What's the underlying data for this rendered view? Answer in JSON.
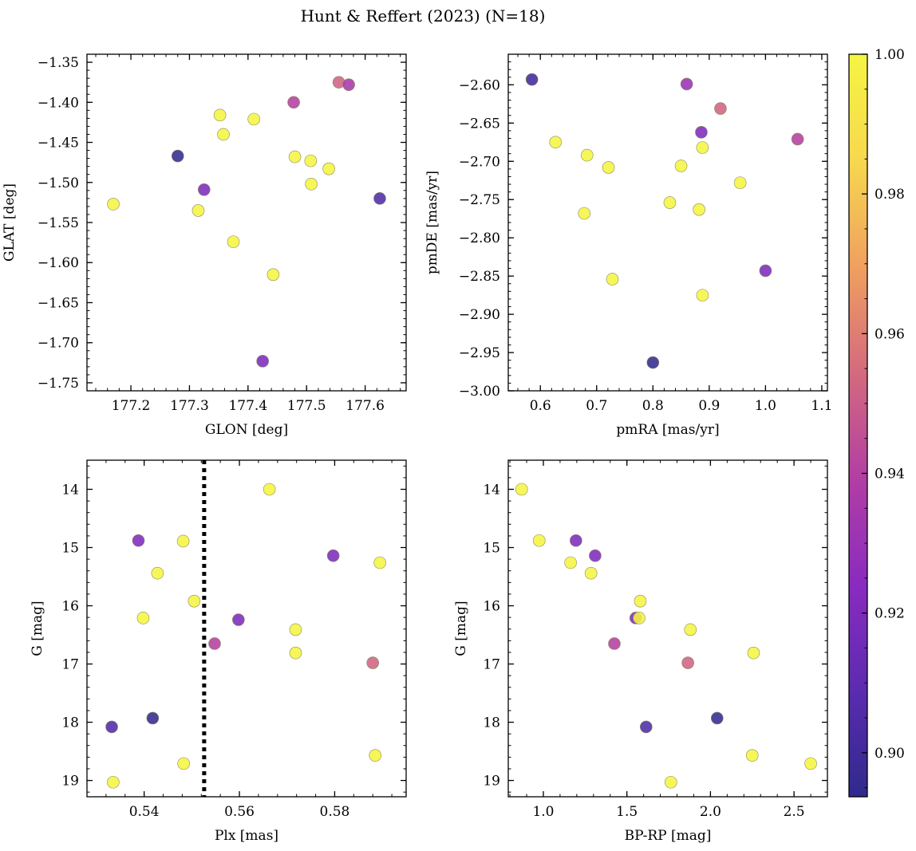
{
  "chart_data": {
    "type": "scatter",
    "title": "Hunt & Reffert (2023) (N=18)",
    "colorbar": {
      "range": [
        0.8937,
        1.0
      ],
      "ticks": [
        0.9,
        0.92,
        0.94,
        0.96,
        0.98,
        1.0
      ],
      "tick_labels": [
        "0.90",
        "0.92",
        "0.94",
        "0.96",
        "0.98",
        "1.00"
      ],
      "colormap": "plasma",
      "colormap_stops": [
        "#2f2a8c",
        "#5b2bb0",
        "#8a2bc0",
        "#b23ea3",
        "#d46a7e",
        "#f0a05f",
        "#f7d84e",
        "#f5f542"
      ]
    },
    "panels": [
      {
        "xlabel": "GLON [deg]",
        "ylabel": "GLAT [deg]",
        "xlim": [
          177.125,
          177.67
        ],
        "ylim": [
          -1.76,
          -1.34
        ],
        "xticks": [
          177.2,
          177.3,
          177.4,
          177.5,
          177.6
        ],
        "xtick_labels": [
          "177.2",
          "177.3",
          "177.4",
          "177.5",
          "177.6"
        ],
        "yticks": [
          -1.35,
          -1.4,
          -1.45,
          -1.5,
          -1.55,
          -1.6,
          -1.65,
          -1.7,
          -1.75
        ],
        "ytick_labels": [
          "−1.35",
          "−1.40",
          "−1.45",
          "−1.50",
          "−1.55",
          "−1.60",
          "−1.65",
          "−1.70",
          "−1.75"
        ],
        "xminor": 0.02,
        "yminor": 0.01,
        "invert_y": false,
        "x": [
          177.17,
          177.28,
          177.325,
          177.315,
          177.352,
          177.358,
          177.375,
          177.41,
          177.443,
          177.425,
          177.478,
          177.48,
          177.507,
          177.508,
          177.538,
          177.555,
          177.572,
          177.625
        ],
        "y": [
          -1.527,
          -1.467,
          -1.509,
          -1.535,
          -1.416,
          -1.44,
          -1.574,
          -1.421,
          -1.615,
          -1.723,
          -1.4,
          -1.468,
          -1.473,
          -1.502,
          -1.483,
          -1.375,
          -1.378,
          -1.52
        ]
      },
      {
        "xlabel": "pmRA [mas/yr]",
        "ylabel": "pmDE [mas/yr]",
        "xlim": [
          0.543,
          1.11
        ],
        "ylim": [
          -3.0,
          -2.56
        ],
        "xticks": [
          0.6,
          0.7,
          0.8,
          0.9,
          1.0,
          1.1
        ],
        "xtick_labels": [
          "0.6",
          "0.7",
          "0.8",
          "0.9",
          "1.0",
          "1.1"
        ],
        "yticks": [
          -2.6,
          -2.65,
          -2.7,
          -2.75,
          -2.8,
          -2.85,
          -2.9,
          -2.95,
          -3.0
        ],
        "ytick_labels": [
          "−2.60",
          "−2.65",
          "−2.70",
          "−2.75",
          "−2.80",
          "−2.85",
          "−2.90",
          "−2.95",
          "−3.00"
        ],
        "xminor": 0.02,
        "yminor": 0.01,
        "invert_y": false,
        "x": [
          0.585,
          0.627,
          0.683,
          0.678,
          0.721,
          0.728,
          0.8,
          0.83,
          0.85,
          0.86,
          0.882,
          0.886,
          0.888,
          0.888,
          0.92,
          0.955,
          1.0,
          1.057
        ],
        "y": [
          -2.593,
          -2.675,
          -2.692,
          -2.768,
          -2.708,
          -2.854,
          -2.963,
          -2.754,
          -2.706,
          -2.599,
          -2.763,
          -2.662,
          -2.682,
          -2.875,
          -2.631,
          -2.728,
          -2.843,
          -2.671
        ]
      },
      {
        "xlabel": "Plx [mas]",
        "ylabel": "G [mag]",
        "xlim": [
          0.528,
          0.595
        ],
        "ylim": [
          13.5,
          19.28
        ],
        "xticks": [
          0.54,
          0.56,
          0.58
        ],
        "xtick_labels": [
          "0.54",
          "0.56",
          "0.58"
        ],
        "yticks": [
          14,
          15,
          16,
          17,
          18,
          19
        ],
        "ytick_labels": [
          "14",
          "15",
          "16",
          "17",
          "18",
          "19"
        ],
        "xminor": 0.004,
        "yminor": 0.2,
        "invert_y": true,
        "vline": 0.5526,
        "x": [
          0.5332,
          0.5335,
          0.5388,
          0.5398,
          0.5418,
          0.5428,
          0.5482,
          0.5483,
          0.5505,
          0.5548,
          0.5598,
          0.5663,
          0.5718,
          0.5718,
          0.5797,
          0.588,
          0.5885,
          0.5895
        ],
        "y": [
          18.08,
          19.03,
          14.88,
          16.21,
          17.93,
          15.44,
          14.89,
          18.71,
          15.92,
          16.65,
          16.24,
          14.0,
          16.41,
          16.81,
          15.14,
          16.98,
          18.57,
          15.26
        ]
      },
      {
        "xlabel": "BP-RP [mag]",
        "ylabel": "G [mag]",
        "xlim": [
          0.79,
          2.7
        ],
        "ylim": [
          13.5,
          19.28
        ],
        "xticks": [
          1.0,
          1.5,
          2.0,
          2.5
        ],
        "xtick_labels": [
          "1.0",
          "1.5",
          "2.0",
          "2.5"
        ],
        "yticks": [
          14,
          15,
          16,
          17,
          18,
          19
        ],
        "ytick_labels": [
          "14",
          "15",
          "16",
          "17",
          "18",
          "19"
        ],
        "xminor": 0.1,
        "yminor": 0.2,
        "invert_y": true,
        "x": [
          0.87,
          0.975,
          1.163,
          1.195,
          1.285,
          1.31,
          1.425,
          1.553,
          1.573,
          1.58,
          1.615,
          1.763,
          1.865,
          1.88,
          2.04,
          2.25,
          2.258,
          2.6
        ],
        "y": [
          14.0,
          14.88,
          15.26,
          14.88,
          15.44,
          15.14,
          16.65,
          16.21,
          16.21,
          15.92,
          18.08,
          19.03,
          16.98,
          16.41,
          17.93,
          18.57,
          16.81,
          18.71
        ]
      }
    ],
    "marker_color_values": {
      "panel_1": [
        1.0,
        0.895,
        0.92,
        1.0,
        1.0,
        1.0,
        1.0,
        1.0,
        1.0,
        0.92,
        0.94,
        1.0,
        1.0,
        1.0,
        1.0,
        0.952,
        0.935,
        0.905
      ],
      "panel_2": [
        0.9,
        1.0,
        1.0,
        1.0,
        1.0,
        1.0,
        0.895,
        1.0,
        1.0,
        0.93,
        1.0,
        0.92,
        1.0,
        1.0,
        0.952,
        1.0,
        0.92,
        0.94
      ],
      "panel_3": [
        0.905,
        1.0,
        0.92,
        1.0,
        0.895,
        1.0,
        1.0,
        1.0,
        1.0,
        0.94,
        0.92,
        1.0,
        1.0,
        1.0,
        0.92,
        0.952,
        1.0,
        1.0
      ],
      "panel_4": [
        1.0,
        1.0,
        1.0,
        0.92,
        1.0,
        0.92,
        0.94,
        0.92,
        1.0,
        1.0,
        0.905,
        1.0,
        0.952,
        1.0,
        0.895,
        1.0,
        1.0,
        1.0
      ]
    }
  }
}
